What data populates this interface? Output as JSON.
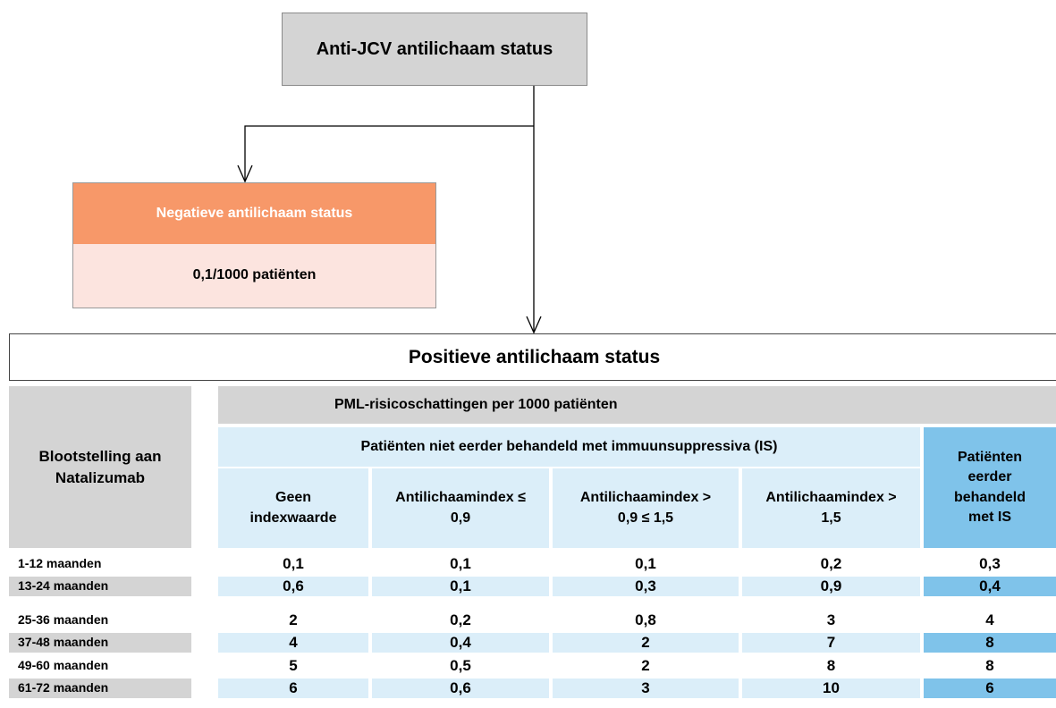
{
  "header": {
    "title": "Anti-JCV antilichaam status"
  },
  "negative": {
    "title": "Negatieve antilichaam status",
    "value": "0,1/1000 patiënten"
  },
  "positive": {
    "title": "Positieve antilichaam status"
  },
  "table": {
    "row_header": "Blootstelling aan Natalizumab",
    "group_header": "PML-risicoschattingen per 1000 patiënten",
    "subgroup_header": "Patiënten niet eerder behandeld met immuunsuppressiva (IS)",
    "columns": [
      "Geen indexwaarde",
      "Antilichaamindex ≤ 0,9",
      "Antilichaamindex > 0,9 ≤ 1,5",
      "Antilichaamindex > 1,5",
      "Patiënten eerder behandeld met IS"
    ],
    "rows": [
      [
        "1-12 maanden",
        "0,1",
        "0,1",
        "0,1",
        "0,2",
        "0,3"
      ],
      [
        "13-24 maanden",
        "0,6",
        "0,1",
        "0,3",
        "0,9",
        "0,4"
      ],
      [
        "25-36 maanden",
        "2",
        "0,2",
        "0,8",
        "3",
        "4"
      ],
      [
        "37-48 maanden",
        "4",
        "0,4",
        "2",
        "7",
        "8"
      ],
      [
        "49-60 maanden",
        "5",
        "0,5",
        "2",
        "8",
        "8"
      ],
      [
        "61-72 maanden",
        "6",
        "0,6",
        "3",
        "10",
        "6"
      ]
    ]
  }
}
